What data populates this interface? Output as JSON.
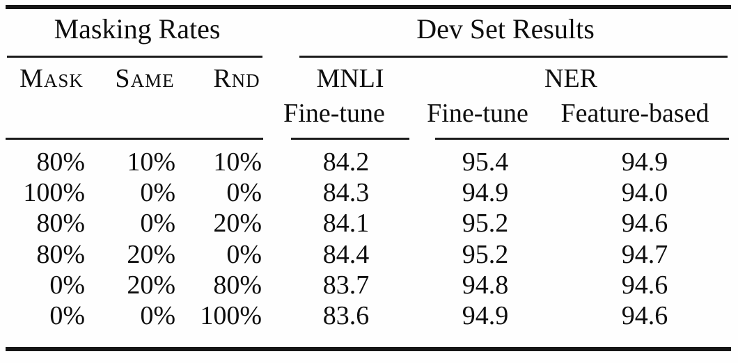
{
  "table": {
    "group_headers": {
      "left": "Masking Rates",
      "right": "Dev Set Results"
    },
    "columns": {
      "mask": "Mask",
      "same": "Same",
      "rnd": "Rnd",
      "mnli": "MNLI",
      "ner": "NER",
      "mnli_sub": "Fine-tune",
      "ner_sub_1": "Fine-tune",
      "ner_sub_2": "Feature-based"
    },
    "rows": [
      {
        "mask": "80%",
        "same": "10%",
        "rnd": "10%",
        "mnli_ft": "84.2",
        "ner_ft": "95.4",
        "ner_fb": "94.9"
      },
      {
        "mask": "100%",
        "same": "0%",
        "rnd": "0%",
        "mnli_ft": "84.3",
        "ner_ft": "94.9",
        "ner_fb": "94.0"
      },
      {
        "mask": "80%",
        "same": "0%",
        "rnd": "20%",
        "mnli_ft": "84.1",
        "ner_ft": "95.2",
        "ner_fb": "94.6"
      },
      {
        "mask": "80%",
        "same": "20%",
        "rnd": "0%",
        "mnli_ft": "84.4",
        "ner_ft": "95.2",
        "ner_fb": "94.7"
      },
      {
        "mask": "0%",
        "same": "20%",
        "rnd": "80%",
        "mnli_ft": "83.7",
        "ner_ft": "94.8",
        "ner_fb": "94.6"
      },
      {
        "mask": "0%",
        "same": "0%",
        "rnd": "100%",
        "mnli_ft": "83.6",
        "ner_ft": "94.9",
        "ner_fb": "94.6"
      }
    ]
  },
  "colors": {
    "text": "#0e0e0e",
    "background": "#fefefe",
    "rule": "#161616"
  },
  "chart_data": {
    "type": "table",
    "column_groups": [
      "Masking Rates",
      "Dev Set Results"
    ],
    "columns": [
      "Mask",
      "Same",
      "Rnd",
      "MNLI Fine-tune",
      "NER Fine-tune",
      "NER Feature-based"
    ],
    "rows": [
      [
        "80%",
        "10%",
        "10%",
        84.2,
        95.4,
        94.9
      ],
      [
        "100%",
        "0%",
        "0%",
        84.3,
        94.9,
        94.0
      ],
      [
        "80%",
        "0%",
        "20%",
        84.1,
        95.2,
        94.6
      ],
      [
        "80%",
        "20%",
        "0%",
        84.4,
        95.2,
        94.7
      ],
      [
        "0%",
        "20%",
        "80%",
        83.7,
        94.8,
        94.6
      ],
      [
        "0%",
        "0%",
        "100%",
        83.6,
        94.9,
        94.6
      ]
    ]
  }
}
